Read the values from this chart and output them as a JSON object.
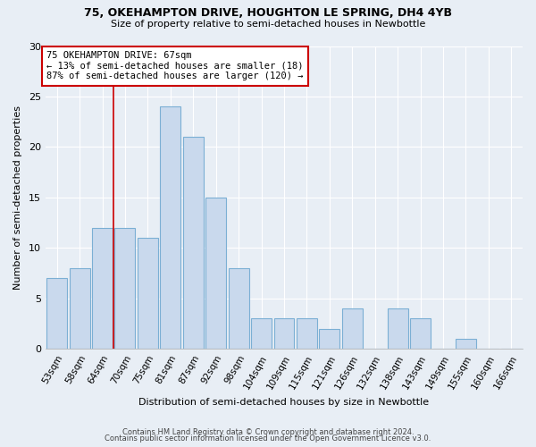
{
  "title1": "75, OKEHAMPTON DRIVE, HOUGHTON LE SPRING, DH4 4YB",
  "title2": "Size of property relative to semi-detached houses in Newbottle",
  "xlabel": "Distribution of semi-detached houses by size in Newbottle",
  "ylabel": "Number of semi-detached properties",
  "categories": [
    "53sqm",
    "58sqm",
    "64sqm",
    "70sqm",
    "75sqm",
    "81sqm",
    "87sqm",
    "92sqm",
    "98sqm",
    "104sqm",
    "109sqm",
    "115sqm",
    "121sqm",
    "126sqm",
    "132sqm",
    "138sqm",
    "143sqm",
    "149sqm",
    "155sqm",
    "160sqm",
    "166sqm"
  ],
  "bin_edges": [
    53,
    58,
    64,
    70,
    75,
    81,
    87,
    92,
    98,
    104,
    109,
    115,
    121,
    126,
    132,
    138,
    143,
    149,
    155,
    160,
    166,
    172
  ],
  "values": [
    7,
    8,
    12,
    12,
    11,
    24,
    21,
    15,
    8,
    3,
    3,
    3,
    2,
    4,
    0,
    4,
    3,
    0,
    1,
    0,
    0
  ],
  "bar_color": "#c9d9ed",
  "bar_edge_color": "#7bafd4",
  "bar_linewidth": 0.8,
  "red_line_x": 67,
  "annotation_title": "75 OKEHAMPTON DRIVE: 67sqm",
  "annotation_line1": "← 13% of semi-detached houses are smaller (18)",
  "annotation_line2": "87% of semi-detached houses are larger (120) →",
  "annotation_box_color": "#ffffff",
  "annotation_box_edge_color": "#cc0000",
  "red_line_color": "#cc0000",
  "background_color": "#e8eef5",
  "ylim": [
    0,
    30
  ],
  "yticks": [
    0,
    5,
    10,
    15,
    20,
    25,
    30
  ],
  "footer1": "Contains HM Land Registry data © Crown copyright and database right 2024.",
  "footer2": "Contains public sector information licensed under the Open Government Licence v3.0."
}
